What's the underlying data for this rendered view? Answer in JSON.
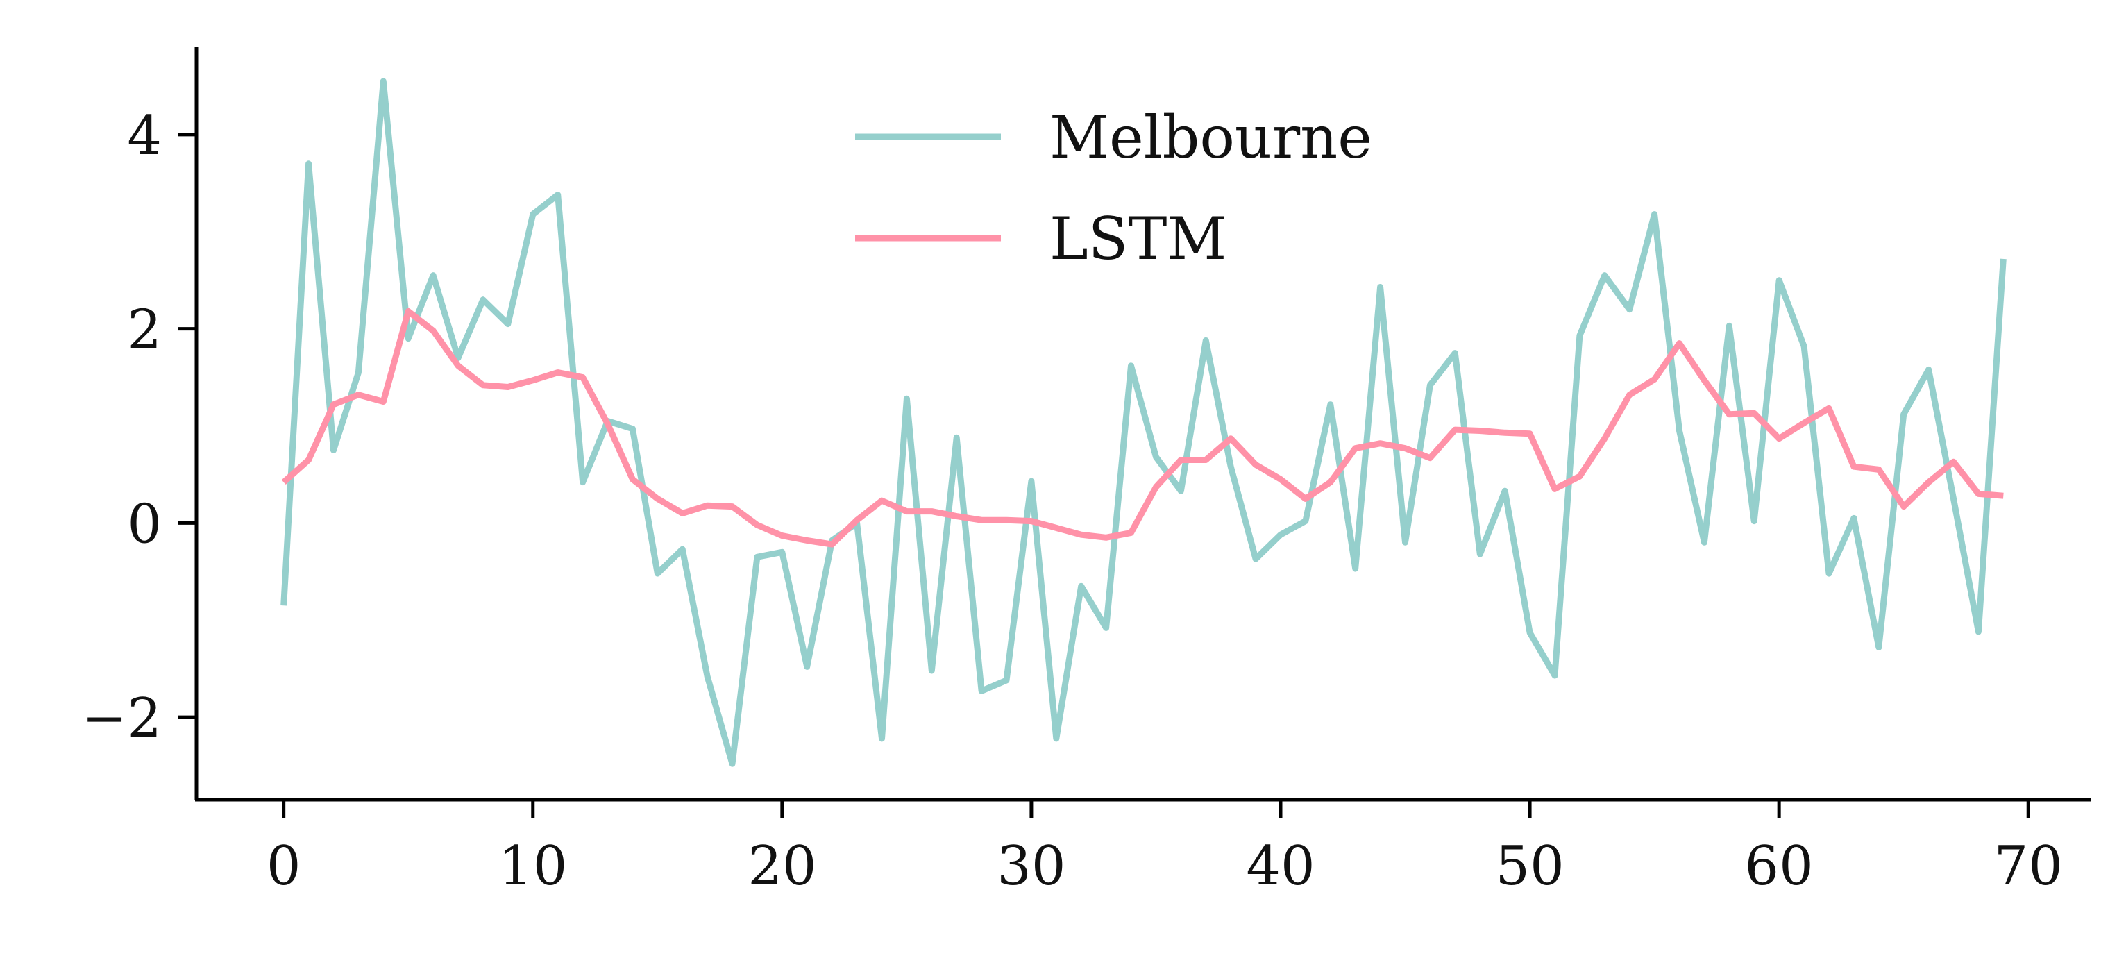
{
  "chart_data": {
    "type": "line",
    "title": "",
    "xlabel": "",
    "ylabel": "",
    "xlim": [
      -3.5,
      72.5
    ],
    "ylim": [
      -2.85,
      4.9
    ],
    "xticks": [
      0,
      10,
      20,
      30,
      40,
      50,
      60,
      70
    ],
    "xtick_labels": [
      "0",
      "10",
      "20",
      "30",
      "40",
      "50",
      "60",
      "70"
    ],
    "yticks": [
      -2,
      0,
      2,
      4
    ],
    "ytick_labels": [
      "−2",
      "0",
      "2",
      "4"
    ],
    "grid": false,
    "legend_position": "top-center",
    "x": [
      0,
      1,
      2,
      3,
      4,
      5,
      6,
      7,
      8,
      9,
      10,
      11,
      12,
      13,
      14,
      15,
      16,
      17,
      18,
      19,
      20,
      21,
      22,
      23,
      24,
      25,
      26,
      27,
      28,
      29,
      30,
      31,
      32,
      33,
      34,
      35,
      36,
      37,
      38,
      39,
      40,
      41,
      42,
      43,
      44,
      45,
      46,
      47,
      48,
      49,
      50,
      51,
      52,
      53,
      54,
      55,
      56,
      57,
      58,
      59,
      60,
      61,
      62,
      63,
      64,
      65,
      66,
      67,
      68,
      69
    ],
    "series": [
      {
        "name": "Melbourne",
        "color": "#95cfcc",
        "values": [
          -0.85,
          3.7,
          0.75,
          1.55,
          4.55,
          1.9,
          2.55,
          1.7,
          2.3,
          2.05,
          3.18,
          3.38,
          0.42,
          1.05,
          0.97,
          -0.52,
          -0.27,
          -1.58,
          -2.48,
          -0.35,
          -0.3,
          -1.48,
          -0.18,
          0.0,
          -2.22,
          1.28,
          -1.52,
          0.88,
          -1.73,
          -1.62,
          0.43,
          -2.22,
          -0.65,
          -1.08,
          1.62,
          0.68,
          0.33,
          1.88,
          0.58,
          -0.37,
          -0.12,
          0.02,
          1.22,
          -0.47,
          2.43,
          -0.2,
          1.42,
          1.75,
          -0.32,
          0.33,
          -1.13,
          -1.57,
          1.93,
          2.55,
          2.2,
          3.18,
          0.95,
          -0.2,
          2.03,
          0.02,
          2.5,
          1.82,
          -0.52,
          0.05,
          -1.28,
          1.12,
          1.58,
          0.25,
          -1.12,
          2.72
        ]
      },
      {
        "name": "LSTM",
        "color": "#ff92a8",
        "values": [
          0.42,
          0.65,
          1.22,
          1.32,
          1.25,
          2.18,
          1.98,
          1.62,
          1.42,
          1.4,
          1.47,
          1.55,
          1.5,
          1.02,
          0.45,
          0.25,
          0.1,
          0.18,
          0.17,
          -0.02,
          -0.13,
          -0.18,
          -0.22,
          0.03,
          0.23,
          0.12,
          0.12,
          0.07,
          0.03,
          0.03,
          0.02,
          -0.05,
          -0.12,
          -0.15,
          -0.1,
          0.37,
          0.65,
          0.65,
          0.87,
          0.6,
          0.45,
          0.25,
          0.42,
          0.77,
          0.82,
          0.77,
          0.67,
          0.96,
          0.95,
          0.93,
          0.92,
          0.35,
          0.48,
          0.87,
          1.32,
          1.48,
          1.85,
          1.47,
          1.12,
          1.13,
          0.87,
          1.03,
          1.18,
          0.58,
          0.55,
          0.17,
          0.42,
          0.63,
          0.3,
          0.28
        ]
      }
    ]
  }
}
